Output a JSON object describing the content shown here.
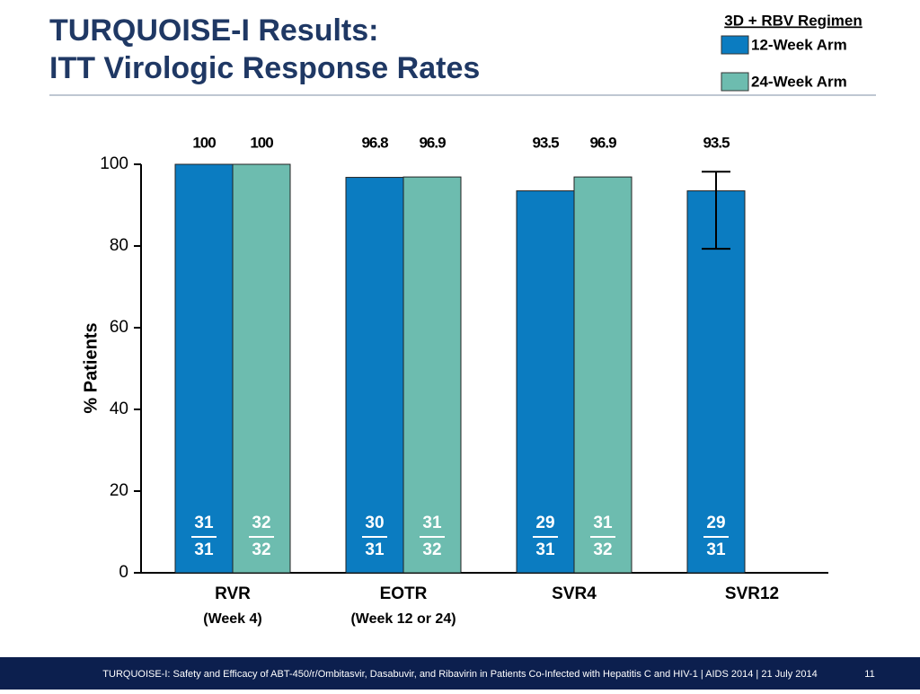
{
  "chart_data": {
    "type": "bar",
    "title": [
      "TURQUOISE-I Results:",
      "ITT Virologic Response Rates"
    ],
    "ylabel": "% Patients",
    "legend_title": "3D + RBV Regimen",
    "categories": [
      "RVR",
      "EOTR",
      "SVR4",
      "SVR12"
    ],
    "category_sublabels": [
      "(Week 4)",
      "(Week 12 or 24)",
      null,
      null
    ],
    "ylim": [
      0,
      100
    ],
    "yticks": [
      0,
      20,
      40,
      60,
      80,
      100
    ],
    "series": [
      {
        "name": "12-Week Arm",
        "color": "#0b7cc1",
        "values": [
          100,
          96.8,
          93.5,
          93.5
        ],
        "numerators": [
          31,
          30,
          29,
          29
        ],
        "denominators": [
          31,
          31,
          31,
          31
        ],
        "ci": [
          null,
          null,
          null,
          [
            79.3,
            98.2
          ]
        ]
      },
      {
        "name": "24-Week Arm",
        "color": "#6dbcaf",
        "values": [
          100,
          96.9,
          96.9,
          null
        ],
        "numerators": [
          32,
          31,
          31,
          null
        ],
        "denominators": [
          32,
          32,
          32,
          null
        ],
        "ci": [
          null,
          null,
          null,
          null
        ]
      }
    ]
  },
  "footer": {
    "text": "TURQUOISE-I: Safety and Efficacy of ABT-450/r/Ombitasvir, Dasabuvir, and Ribavirin in Patients Co-Infected with Hepatitis C and HIV-1 | AIDS 2014 | 21 July 2014",
    "page": "11"
  }
}
